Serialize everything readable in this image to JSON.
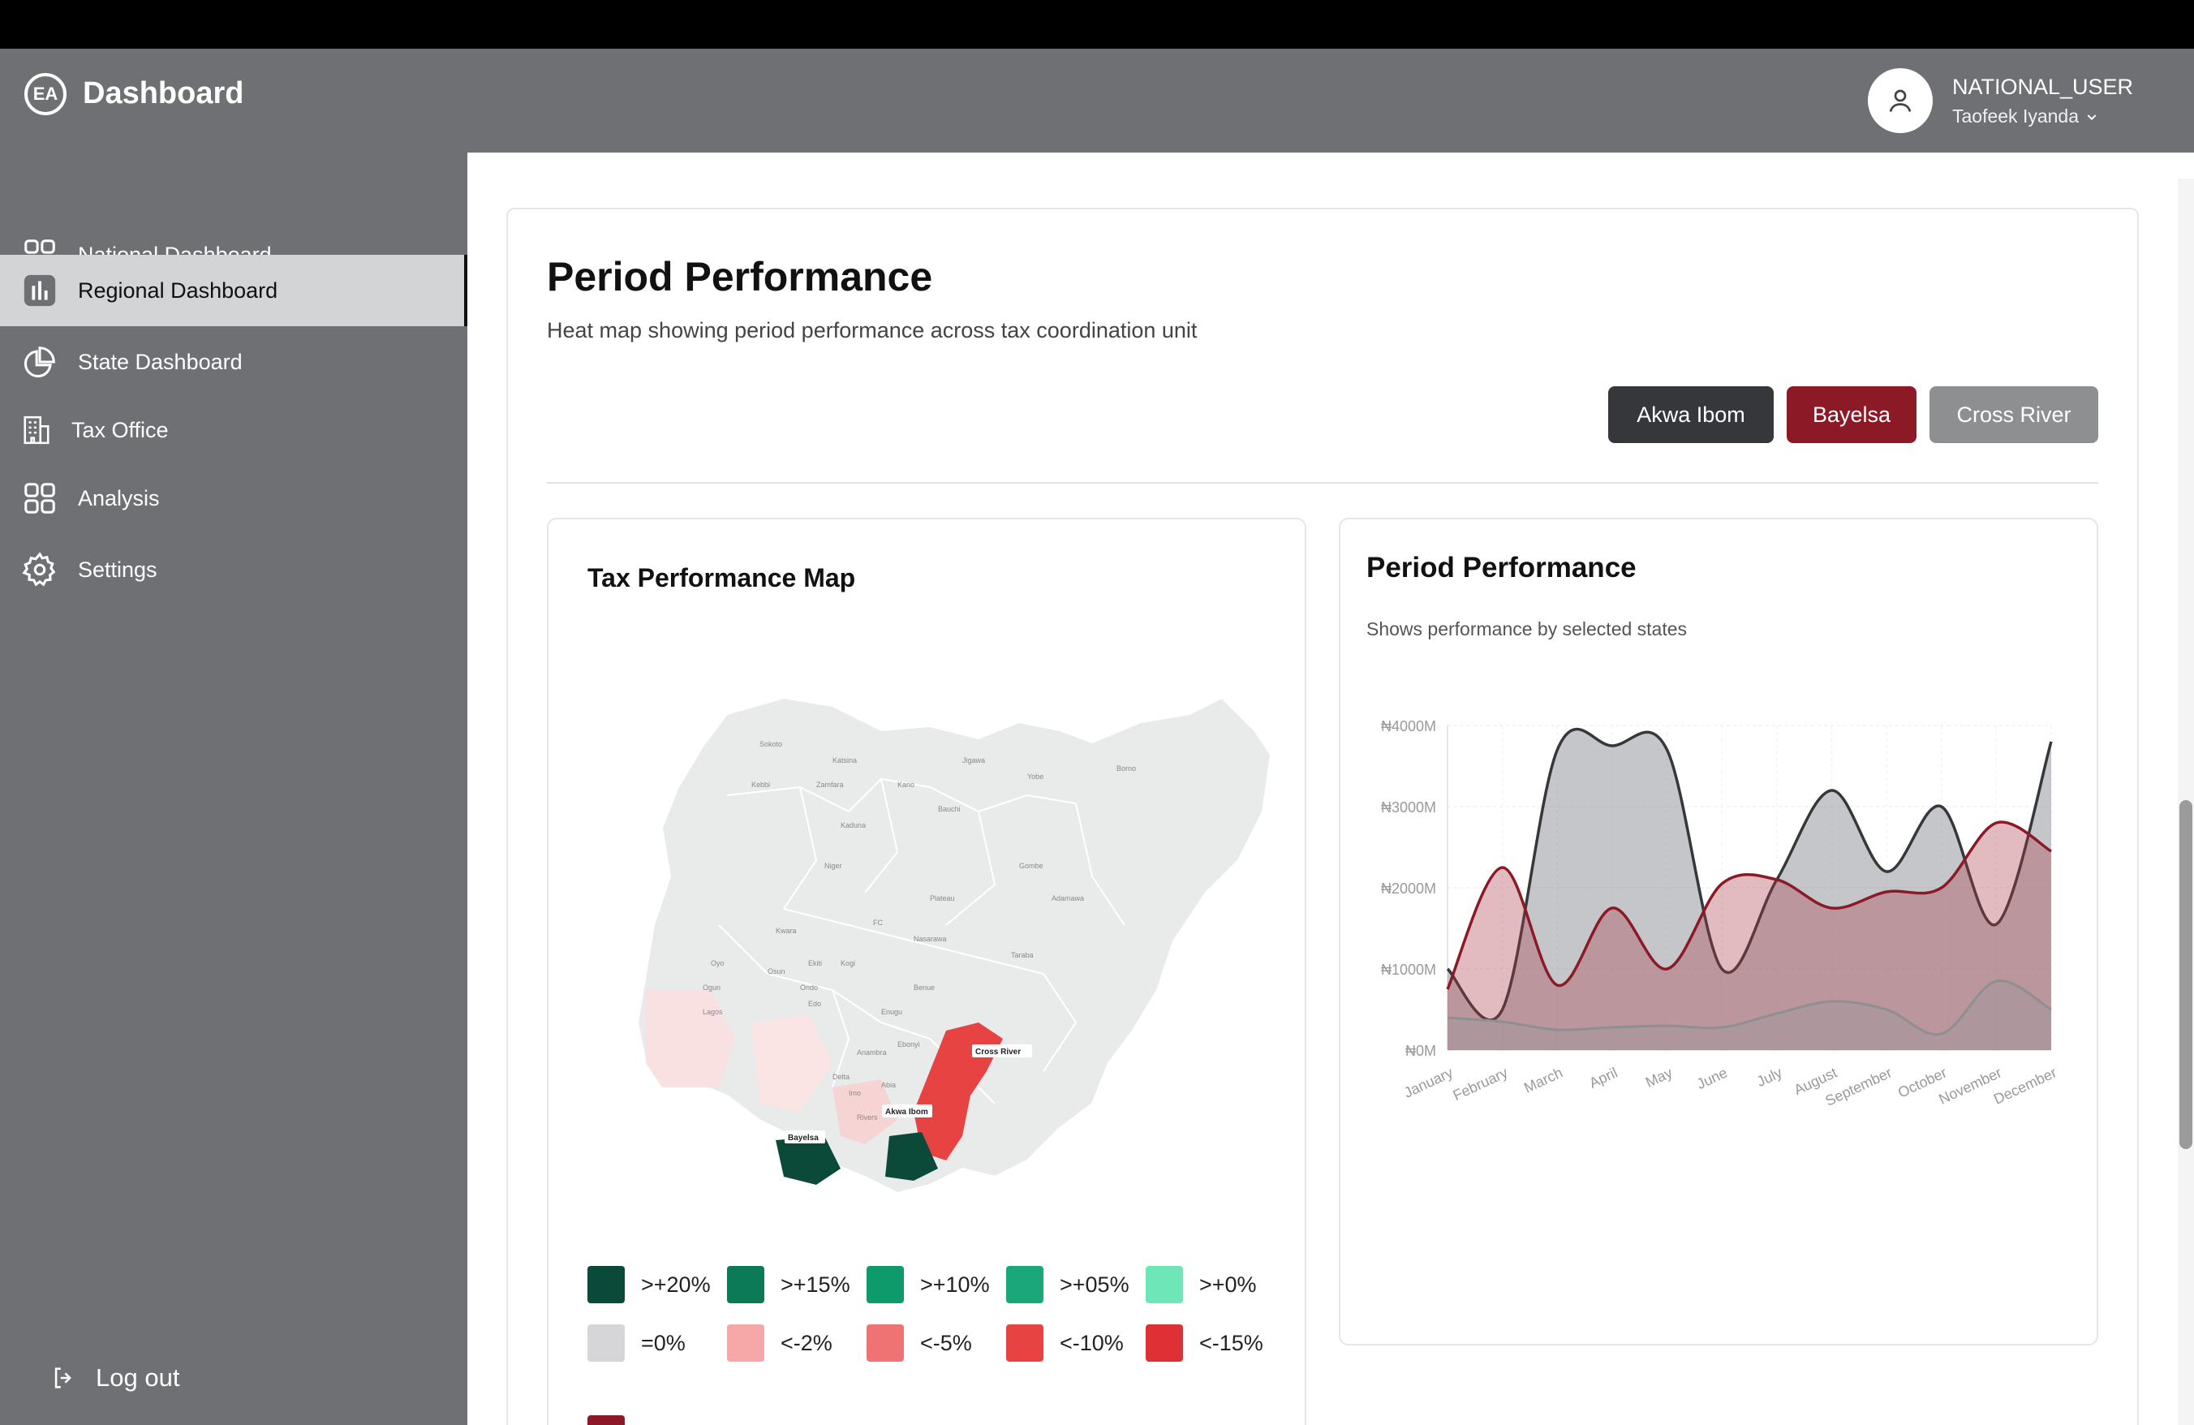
{
  "header": {
    "logo_text": "EA",
    "title": "Dashboard",
    "user_role": "NATIONAL_USER",
    "user_name": "Taofeek Iyanda"
  },
  "sidebar": {
    "items": [
      {
        "label": "National Dashboard",
        "icon": "grid-icon"
      },
      {
        "label": "Regional Dashboard",
        "icon": "bar-chart-icon"
      },
      {
        "label": "State Dashboard",
        "icon": "pie-chart-icon"
      },
      {
        "label": "Tax Office",
        "icon": "building-icon"
      },
      {
        "label": "Analysis",
        "icon": "grid-icon"
      },
      {
        "label": "Settings",
        "icon": "gear-icon"
      }
    ],
    "active_index": 1,
    "logout_label": "Log out"
  },
  "main": {
    "title": "Period Performance",
    "subtitle": "Heat map showing period performance across tax coordination unit",
    "state_buttons": [
      "Akwa Ibom",
      "Bayelsa",
      "Cross River"
    ]
  },
  "map_panel": {
    "title": "Tax Performance Map",
    "state_labels": [
      "Sokoto",
      "Katsina",
      "Jigawa",
      "Yobe",
      "Borno",
      "Kebbi",
      "Zamfara",
      "Kano",
      "Bauchi",
      "Kaduna",
      "Niger",
      "Gombe",
      "Plateau",
      "Adamawa",
      "FC",
      "Kwara",
      "Nasarawa",
      "Taraba",
      "Oyo",
      "Osun",
      "Ekiti",
      "Kogi",
      "Ogun",
      "Ondo",
      "Benue",
      "Lagos",
      "Edo",
      "Enugu",
      "Ebonyi",
      "Anambra",
      "Delta",
      "Imo",
      "Abia",
      "Rivers",
      "Bayelsa",
      "Akwa Ibom",
      "Cross River"
    ],
    "highlight_labels": [
      "Cross River",
      "Akwa Ibom",
      "Bayelsa"
    ],
    "legend": [
      {
        "label": ">+20%",
        "color": "#0b4a39"
      },
      {
        "label": ">+15%",
        "color": "#0d7a57"
      },
      {
        "label": ">+10%",
        "color": "#0e9a6a"
      },
      {
        "label": ">+05%",
        "color": "#1aa87a"
      },
      {
        "label": ">+0%",
        "color": "#6ee6b8"
      },
      {
        "label": "=0%",
        "color": "#d6d6d8"
      },
      {
        "label": "<-2%",
        "color": "#f6a7a7"
      },
      {
        "label": "<-5%",
        "color": "#f07373"
      },
      {
        "label": "<-10%",
        "color": "#e84343"
      },
      {
        "label": "<-15%",
        "color": "#df3135"
      }
    ],
    "legend_extra_color": "#8c1a26"
  },
  "chart_panel": {
    "title": "Period Performance",
    "subtitle": "Shows performance by selected states"
  },
  "chart_data": {
    "type": "area",
    "title": "Period Performance",
    "subtitle": "Shows performance by selected states",
    "categories": [
      "January",
      "February",
      "March",
      "April",
      "May",
      "June",
      "July",
      "August",
      "September",
      "October",
      "November",
      "December"
    ],
    "y_ticks": [
      "₦0M",
      "₦1000M",
      "₦2000M",
      "₦3000M",
      "₦4000M"
    ],
    "ylim": [
      0,
      4000
    ],
    "series": [
      {
        "name": "Akwa Ibom",
        "color": "#35373a",
        "values": [
          1000,
          500,
          3700,
          3750,
          3700,
          1000,
          2100,
          3200,
          2200,
          3000,
          1550,
          3800
        ]
      },
      {
        "name": "Bayelsa",
        "color": "#8c1a26",
        "values": [
          750,
          2250,
          800,
          1750,
          1000,
          2050,
          2100,
          1750,
          1950,
          2000,
          2800,
          2450
        ]
      },
      {
        "name": "Cross River",
        "color": "#8e8f91",
        "values": [
          400,
          350,
          250,
          280,
          300,
          280,
          450,
          600,
          500,
          200,
          850,
          500
        ]
      }
    ]
  }
}
